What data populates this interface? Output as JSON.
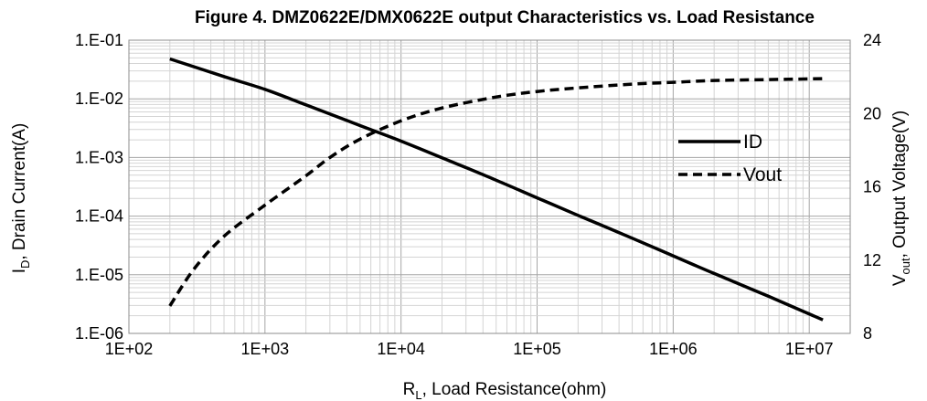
{
  "chart_data": {
    "type": "line",
    "title": "Figure 4. DMZ0622E/DMX0622E output Characteristics vs. Load Resistance",
    "xlabel": {
      "main": "R",
      "sub": "L",
      "rest": ", Load Resistance(ohm)"
    },
    "ylabel_left": {
      "main": "I",
      "sub": "D",
      "rest": ", Drain Current(A)"
    },
    "ylabel_right": {
      "main": "V",
      "sub": "out",
      "rest": ", Output Voltage(V)"
    },
    "x_scale": "log",
    "xlim": [
      100,
      20000000
    ],
    "x_ticks": [
      100,
      1000,
      10000,
      100000,
      1000000,
      10000000
    ],
    "x_tick_labels": [
      "1E+02",
      "1E+03",
      "1E+04",
      "1E+05",
      "1E+06",
      "1E+07"
    ],
    "y_left_scale": "log",
    "y_left_lim": [
      1e-06,
      0.1
    ],
    "y_left_ticks": [
      0.1,
      0.01,
      0.001,
      0.0001,
      1e-05,
      1e-06
    ],
    "y_left_tick_labels": [
      "1.E-01",
      "1.E-02",
      "1.E-03",
      "1.E-04",
      "1.E-05",
      "1.E-06"
    ],
    "y_right_lim": [
      8,
      24
    ],
    "y_right_ticks": [
      24,
      20,
      16,
      12,
      8
    ],
    "y_right_tick_labels": [
      "24",
      "20",
      "16",
      "12",
      "8"
    ],
    "grid": true,
    "legend_position": "right",
    "series": [
      {
        "name": "ID",
        "axis": "left",
        "style": "solid",
        "color": "#000000",
        "x": [
          200,
          500,
          1000,
          2000,
          5000,
          10000,
          20000,
          50000,
          100000,
          200000,
          500000,
          1000000,
          2000000,
          5000000,
          12600000
        ],
        "y": [
          0.048,
          0.024,
          0.0145,
          0.0079,
          0.0035,
          0.0019,
          0.00099,
          0.00041,
          0.000205,
          0.000103,
          4.2e-05,
          2.1e-05,
          1.05e-05,
          4.3e-06,
          1.7e-06
        ]
      },
      {
        "name": "Vout",
        "axis": "right",
        "style": "dashed",
        "color": "#000000",
        "x": [
          200,
          300,
          500,
          1000,
          2000,
          3000,
          5000,
          10000,
          20000,
          50000,
          100000,
          200000,
          500000,
          1000000,
          2000000,
          5000000,
          12600000
        ],
        "y": [
          9.5,
          11.5,
          13.3,
          15.0,
          16.6,
          17.6,
          18.6,
          19.6,
          20.3,
          20.9,
          21.2,
          21.4,
          21.6,
          21.7,
          21.8,
          21.85,
          21.9
        ]
      }
    ]
  }
}
